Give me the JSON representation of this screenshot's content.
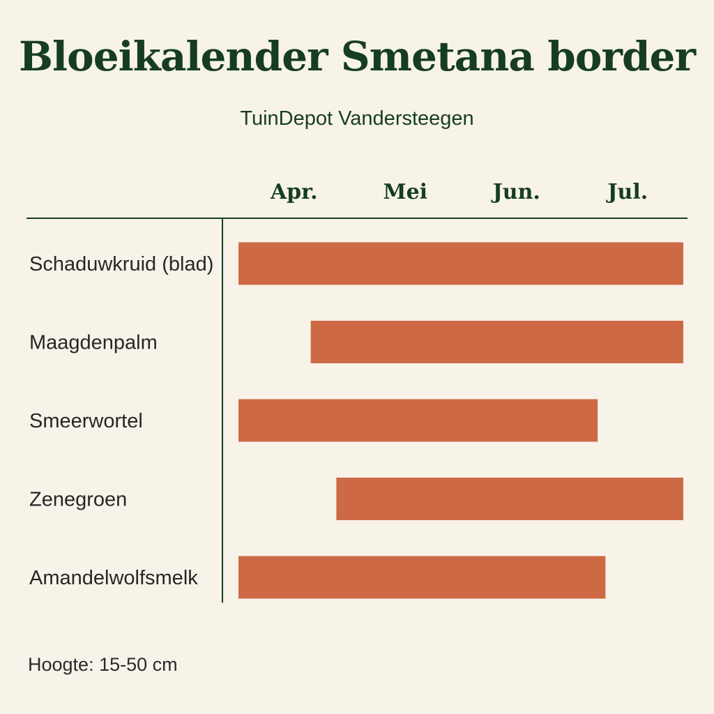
{
  "title": "Bloeikalender Smetana border",
  "subtitle": "TuinDepot Vandersteegen",
  "footer": "Hoogte: 15-50 cm",
  "colors": {
    "bar": "#cd6a45",
    "axis": "#163d22",
    "heading": "#163d22"
  },
  "chart_data": {
    "type": "bar",
    "orientation": "horizontal-range",
    "months": [
      "Apr.",
      "Mei",
      "Jun.",
      "Jul."
    ],
    "x_range": [
      0,
      4
    ],
    "rows": [
      {
        "label": "Schaduwkruid (blad)",
        "start": 0.0,
        "end": 4.0
      },
      {
        "label": "Maagdenpalm",
        "start": 0.65,
        "end": 4.0
      },
      {
        "label": "Smeerwortel",
        "start": 0.0,
        "end": 3.23
      },
      {
        "label": "Zenegroen",
        "start": 0.88,
        "end": 4.0
      },
      {
        "label": "Amandelwolfsmelk",
        "start": 0.0,
        "end": 3.3
      }
    ]
  }
}
